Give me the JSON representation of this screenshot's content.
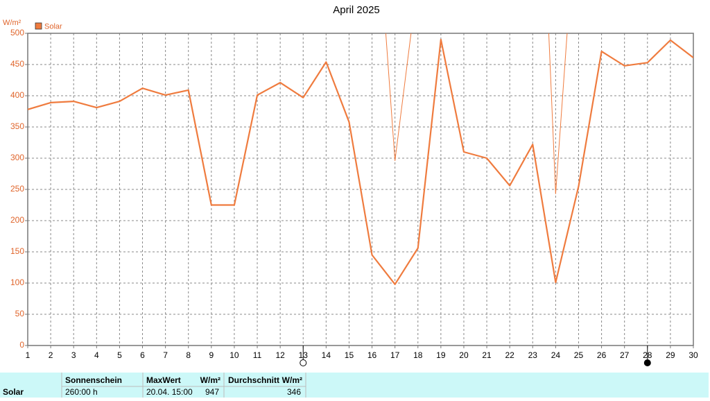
{
  "chart_data": {
    "type": "line",
    "title": "April 2025",
    "y_label": "W/m²",
    "x": [
      1,
      2,
      3,
      4,
      5,
      6,
      7,
      8,
      9,
      10,
      11,
      12,
      13,
      14,
      15,
      16,
      17,
      18,
      19,
      20,
      21,
      22,
      23,
      24,
      25,
      26,
      27,
      28,
      29,
      30
    ],
    "series": [
      {
        "name": "Solar",
        "color": "#ef7b3e",
        "width": 2.2,
        "values": [
          378,
          389,
          391,
          381,
          391,
          412,
          401,
          409,
          225,
          225,
          401,
          421,
          397,
          454,
          358,
          145,
          98,
          156,
          490,
          310,
          300,
          256,
          322,
          101,
          255,
          471,
          448,
          453,
          489,
          461
        ]
      },
      {
        "color": "#ef7b3e",
        "width": 1,
        "x": [
          16.6,
          17,
          17.7,
          null,
          23.7,
          24,
          24.5
        ],
        "values": [
          500,
          296,
          500,
          null,
          500,
          243,
          500
        ]
      }
    ],
    "xlim": [
      1,
      30
    ],
    "xticks": [
      1,
      2,
      3,
      4,
      5,
      6,
      7,
      8,
      9,
      10,
      11,
      12,
      13,
      14,
      15,
      16,
      17,
      18,
      19,
      20,
      21,
      22,
      23,
      24,
      25,
      26,
      27,
      28,
      29,
      30
    ],
    "ylim": [
      0,
      500
    ],
    "yticks": [
      0,
      50,
      100,
      150,
      200,
      250,
      300,
      350,
      400,
      450,
      500
    ],
    "grid": true,
    "legend": "top-left",
    "moon": {
      "full": 13,
      "new": 28
    }
  },
  "summary": {
    "row_label": "Solar",
    "columns": [
      {
        "header": "Sonnenschein",
        "value": "260:00 h"
      },
      {
        "header": "MaxWert",
        "unit": "W/m²",
        "date": "20.04.  15:00",
        "value": "947"
      },
      {
        "header": "Durchschnitt",
        "unit": "W/m²",
        "value": "346"
      }
    ]
  }
}
